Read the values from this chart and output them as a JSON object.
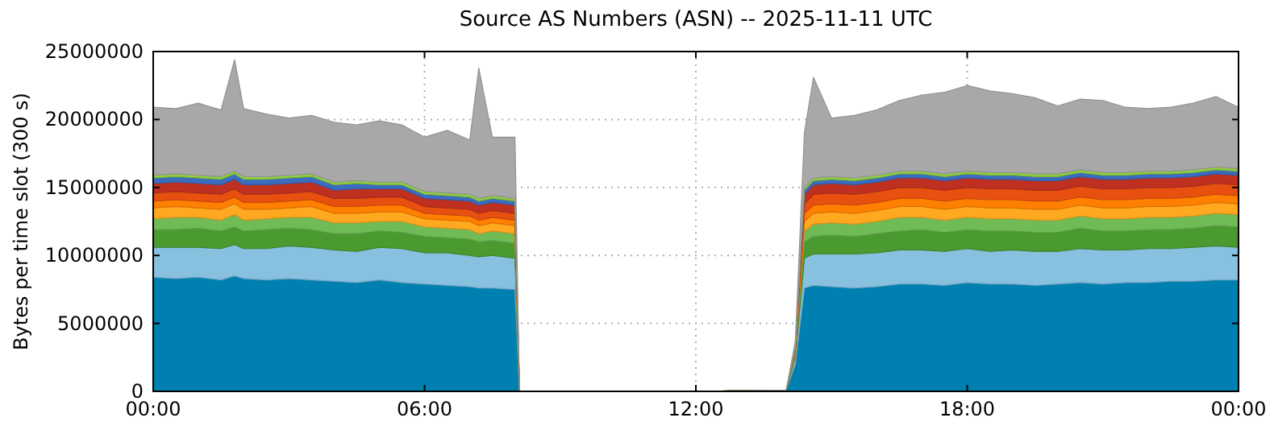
{
  "chart_data": {
    "type": "area",
    "stacked": true,
    "title": "Source AS Numbers (ASN) -- 2025-11-11 UTC",
    "ylabel": "Bytes per time slot (300 s)",
    "grid": true,
    "x": [
      0,
      0.5,
      1,
      1.5,
      1.8,
      2,
      2.5,
      3,
      3.5,
      4,
      4.5,
      5,
      5.5,
      6,
      6.5,
      7,
      7.2,
      7.5,
      8,
      8.1,
      8.2,
      10,
      12,
      14,
      14.2,
      14.4,
      14.6,
      15,
      15.5,
      16,
      16.5,
      17,
      17.5,
      18,
      18.5,
      19,
      19.5,
      20,
      20.5,
      21,
      21.5,
      22,
      22.5,
      23,
      23.5,
      24
    ],
    "xlim": [
      0,
      24
    ],
    "xticks": [
      {
        "value": 0,
        "label": "00:00"
      },
      {
        "value": 6,
        "label": "06:00"
      },
      {
        "value": 12,
        "label": "12:00"
      },
      {
        "value": 18,
        "label": "18:00"
      },
      {
        "value": 24,
        "label": "00:00"
      }
    ],
    "ylim": [
      0,
      25000000
    ],
    "yticks": [
      0,
      5000000,
      10000000,
      15000000,
      20000000,
      25000000
    ],
    "series": [
      {
        "color": "#0080b0",
        "values": [
          8400000.0,
          8300000.0,
          8400000.0,
          8200000.0,
          8500000.0,
          8300000.0,
          8200000.0,
          8300000.0,
          8200000.0,
          8100000.0,
          8000000.0,
          8200000.0,
          8000000.0,
          7900000.0,
          7800000.0,
          7700000.0,
          7600000.0,
          7600000.0,
          7500000.0,
          0,
          0,
          0,
          0,
          100000.0,
          2000000.0,
          7600000.0,
          7800000.0,
          7700000.0,
          7600000.0,
          7700000.0,
          7900000.0,
          7900000.0,
          7800000.0,
          8000000.0,
          7900000.0,
          7900000.0,
          7800000.0,
          7900000.0,
          8000000.0,
          7900000.0,
          8000000.0,
          8000000.0,
          8100000.0,
          8100000.0,
          8200000.0,
          8200000.0
        ]
      },
      {
        "color": "#88c0e0",
        "values": [
          2200000.0,
          2300000.0,
          2200000.0,
          2300000.0,
          2300000.0,
          2200000.0,
          2300000.0,
          2400000.0,
          2400000.0,
          2300000.0,
          2300000.0,
          2400000.0,
          2500000.0,
          2300000.0,
          2400000.0,
          2300000.0,
          2300000.0,
          2400000.0,
          2300000.0,
          0,
          0,
          0,
          0,
          0,
          500000.0,
          2200000.0,
          2300000.0,
          2400000.0,
          2500000.0,
          2500000.0,
          2500000.0,
          2500000.0,
          2500000.0,
          2500000.0,
          2400000.0,
          2500000.0,
          2500000.0,
          2400000.0,
          2500000.0,
          2500000.0,
          2400000.0,
          2500000.0,
          2400000.0,
          2500000.0,
          2500000.0,
          2400000.0
        ]
      },
      {
        "color": "#4a9a30",
        "values": [
          1300000.0,
          1300000.0,
          1400000.0,
          1300000.0,
          1300000.0,
          1300000.0,
          1400000.0,
          1300000.0,
          1300000.0,
          1200000.0,
          1300000.0,
          1200000.0,
          1200000.0,
          1200000.0,
          1100000.0,
          1200000.0,
          1100000.0,
          1100000.0,
          1100000.0,
          0,
          0,
          0,
          0,
          0,
          200000.0,
          1200000.0,
          1300000.0,
          1400000.0,
          1300000.0,
          1400000.0,
          1400000.0,
          1500000.0,
          1400000.0,
          1400000.0,
          1500000.0,
          1400000.0,
          1400000.0,
          1400000.0,
          1500000.0,
          1400000.0,
          1400000.0,
          1400000.0,
          1400000.0,
          1400000.0,
          1500000.0,
          1500000.0
        ]
      },
      {
        "color": "#70bb55",
        "values": [
          800000.0,
          900000.0,
          800000.0,
          800000.0,
          900000.0,
          800000.0,
          800000.0,
          800000.0,
          900000.0,
          800000.0,
          800000.0,
          700000.0,
          800000.0,
          700000.0,
          700000.0,
          700000.0,
          600000.0,
          700000.0,
          700000.0,
          0,
          0,
          0,
          0,
          0,
          100000.0,
          800000.0,
          900000.0,
          900000.0,
          900000.0,
          900000.0,
          1000000.0,
          900000.0,
          900000.0,
          900000.0,
          900000.0,
          900000.0,
          900000.0,
          900000.0,
          900000.0,
          900000.0,
          900000.0,
          900000.0,
          900000.0,
          900000.0,
          900000.0,
          900000.0
        ]
      },
      {
        "color": "#ffa820",
        "values": [
          800000.0,
          800000.0,
          700000.0,
          800000.0,
          800000.0,
          800000.0,
          700000.0,
          700000.0,
          800000.0,
          700000.0,
          700000.0,
          700000.0,
          700000.0,
          600000.0,
          600000.0,
          600000.0,
          600000.0,
          600000.0,
          600000.0,
          0,
          0,
          0,
          0,
          0,
          100000.0,
          700000.0,
          800000.0,
          800000.0,
          800000.0,
          800000.0,
          800000.0,
          800000.0,
          800000.0,
          800000.0,
          800000.0,
          800000.0,
          800000.0,
          800000.0,
          800000.0,
          800000.0,
          800000.0,
          800000.0,
          800000.0,
          800000.0,
          800000.0,
          800000.0
        ]
      },
      {
        "color": "#ff8000",
        "values": [
          500000.0,
          500000.0,
          500000.0,
          500000.0,
          500000.0,
          500000.0,
          500000.0,
          500000.0,
          500000.0,
          500000.0,
          500000.0,
          500000.0,
          500000.0,
          400000.0,
          400000.0,
          400000.0,
          400000.0,
          400000.0,
          400000.0,
          0,
          0,
          0,
          0,
          0,
          100000.0,
          600000.0,
          600000.0,
          600000.0,
          600000.0,
          600000.0,
          600000.0,
          600000.0,
          600000.0,
          600000.0,
          600000.0,
          600000.0,
          600000.0,
          600000.0,
          600000.0,
          600000.0,
          600000.0,
          600000.0,
          600000.0,
          600000.0,
          600000.0,
          600000.0
        ]
      },
      {
        "color": "#e85010",
        "values": [
          600000.0,
          600000.0,
          600000.0,
          600000.0,
          600000.0,
          600000.0,
          600000.0,
          600000.0,
          600000.0,
          600000.0,
          600000.0,
          600000.0,
          600000.0,
          500000.0,
          500000.0,
          500000.0,
          500000.0,
          500000.0,
          500000.0,
          0,
          0,
          0,
          0,
          0,
          100000.0,
          700000.0,
          800000.0,
          800000.0,
          800000.0,
          800000.0,
          800000.0,
          800000.0,
          800000.0,
          800000.0,
          800000.0,
          800000.0,
          800000.0,
          800000.0,
          800000.0,
          800000.0,
          800000.0,
          800000.0,
          800000.0,
          800000.0,
          800000.0,
          800000.0
        ]
      },
      {
        "color": "#c03020",
        "values": [
          700000.0,
          700000.0,
          700000.0,
          700000.0,
          700000.0,
          700000.0,
          700000.0,
          700000.0,
          700000.0,
          600000.0,
          700000.0,
          600000.0,
          600000.0,
          600000.0,
          600000.0,
          600000.0,
          600000.0,
          600000.0,
          600000.0,
          0,
          0,
          0,
          0,
          0,
          100000.0,
          700000.0,
          700000.0,
          700000.0,
          700000.0,
          700000.0,
          700000.0,
          700000.0,
          700000.0,
          700000.0,
          700000.0,
          700000.0,
          700000.0,
          700000.0,
          700000.0,
          700000.0,
          700000.0,
          700000.0,
          700000.0,
          700000.0,
          700000.0,
          700000.0
        ]
      },
      {
        "color": "#3a6cc0",
        "values": [
          400000.0,
          400000.0,
          400000.0,
          400000.0,
          400000.0,
          400000.0,
          400000.0,
          400000.0,
          400000.0,
          400000.0,
          400000.0,
          300000.0,
          300000.0,
          300000.0,
          300000.0,
          300000.0,
          300000.0,
          300000.0,
          300000.0,
          0,
          0,
          0,
          0,
          0,
          0,
          300000.0,
          300000.0,
          300000.0,
          300000.0,
          300000.0,
          300000.0,
          300000.0,
          300000.0,
          300000.0,
          300000.0,
          300000.0,
          300000.0,
          300000.0,
          300000.0,
          300000.0,
          300000.0,
          300000.0,
          300000.0,
          300000.0,
          300000.0,
          300000.0
        ]
      },
      {
        "color": "#90d040",
        "values": [
          200000.0,
          200000.0,
          200000.0,
          200000.0,
          200000.0,
          200000.0,
          200000.0,
          200000.0,
          200000.0,
          200000.0,
          200000.0,
          200000.0,
          200000.0,
          200000.0,
          200000.0,
          200000.0,
          200000.0,
          200000.0,
          200000.0,
          0,
          0,
          0,
          0,
          0,
          0,
          200000.0,
          200000.0,
          200000.0,
          200000.0,
          200000.0,
          200000.0,
          200000.0,
          200000.0,
          200000.0,
          200000.0,
          200000.0,
          200000.0,
          200000.0,
          200000.0,
          200000.0,
          200000.0,
          200000.0,
          200000.0,
          200000.0,
          200000.0,
          200000.0
        ]
      },
      {
        "color": "#a8a8a8",
        "values": [
          5000000.0,
          4800000.0,
          5300000.0,
          4900000.0,
          8200000.0,
          5000000.0,
          4600000.0,
          4200000.0,
          4300000.0,
          4400000.0,
          4100000.0,
          4500000.0,
          4200000.0,
          4000000.0,
          4600000.0,
          4000000.0,
          9600000.0,
          4300000.0,
          4500000.0,
          0,
          0,
          0,
          0,
          0,
          500000.0,
          4000000.0,
          7400000.0,
          4300000.0,
          4600000.0,
          4800000.0,
          5200000.0,
          5600000.0,
          6000000.0,
          6300000.0,
          6000000.0,
          5800000.0,
          5600000.0,
          5000000.0,
          5200000.0,
          5300000.0,
          4800000.0,
          4600000.0,
          4700000.0,
          4900000.0,
          5200000.0,
          4500000.0
        ]
      }
    ]
  }
}
